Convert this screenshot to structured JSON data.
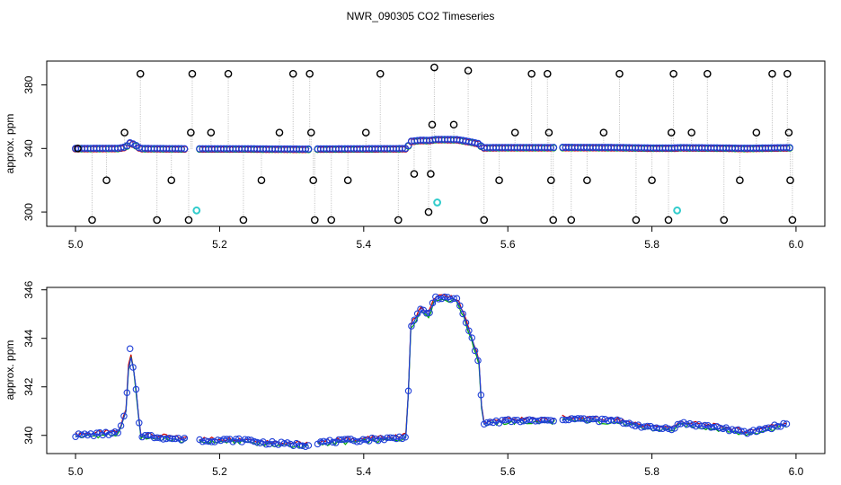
{
  "title": "NWR_090305  CO2 Timeseries",
  "chart_data": [
    {
      "type": "scatter",
      "ylabel": "approx. ppm",
      "xlim": [
        4.96,
        6.04
      ],
      "ylim": [
        291,
        395
      ],
      "xticks": [
        5.0,
        5.2,
        5.4,
        5.6,
        5.8,
        6.0
      ],
      "xticklabels": [
        "5.0",
        "5.2",
        "5.4",
        "5.6",
        "5.8",
        "6.0"
      ],
      "yticks": [
        300,
        340,
        380
      ],
      "yticklabels": [
        "300",
        "340",
        "380"
      ],
      "grid": false,
      "colors": {
        "outlier": "#000000",
        "blue": "#1f3fd8",
        "cyan": "#33cccc",
        "gray": "#bbbbbb"
      },
      "baseline": [
        [
          5.0,
          340.0
        ],
        [
          5.06,
          340.1
        ],
        [
          5.07,
          341.0
        ],
        [
          5.075,
          343.6
        ],
        [
          5.082,
          342.5
        ],
        [
          5.09,
          340.0
        ],
        [
          5.16,
          339.8
        ],
        [
          5.17,
          339.8
        ],
        [
          5.24,
          339.8
        ],
        [
          5.26,
          339.7
        ],
        [
          5.32,
          339.6
        ],
        [
          5.33,
          339.7
        ],
        [
          5.45,
          339.9
        ],
        [
          5.46,
          340.0
        ],
        [
          5.465,
          344.5
        ],
        [
          5.48,
          345.2
        ],
        [
          5.49,
          345.0
        ],
        [
          5.5,
          345.7
        ],
        [
          5.53,
          345.6
        ],
        [
          5.55,
          344.0
        ],
        [
          5.56,
          343.0
        ],
        [
          5.565,
          340.5
        ],
        [
          5.6,
          340.6
        ],
        [
          5.66,
          340.6
        ],
        [
          5.67,
          340.7
        ],
        [
          5.75,
          340.6
        ],
        [
          5.8,
          340.3
        ],
        [
          5.82,
          340.3
        ],
        [
          5.83,
          340.3
        ],
        [
          5.84,
          340.5
        ],
        [
          5.9,
          340.3
        ],
        [
          5.93,
          340.1
        ],
        [
          5.99,
          340.5
        ]
      ],
      "outliers": [
        [
          5.003,
          340
        ],
        [
          5.023,
          295
        ],
        [
          5.043,
          320
        ],
        [
          5.068,
          350
        ],
        [
          5.09,
          387
        ],
        [
          5.113,
          295
        ],
        [
          5.133,
          320
        ],
        [
          5.157,
          295
        ],
        [
          5.16,
          350
        ],
        [
          5.162,
          387
        ],
        [
          5.188,
          350
        ],
        [
          5.212,
          387
        ],
        [
          5.233,
          295
        ],
        [
          5.258,
          320
        ],
        [
          5.283,
          350
        ],
        [
          5.302,
          387
        ],
        [
          5.325,
          387
        ],
        [
          5.327,
          350
        ],
        [
          5.33,
          320
        ],
        [
          5.332,
          295
        ],
        [
          5.355,
          295
        ],
        [
          5.378,
          320
        ],
        [
          5.403,
          350
        ],
        [
          5.423,
          387
        ],
        [
          5.448,
          295
        ],
        [
          5.47,
          324
        ],
        [
          5.49,
          300
        ],
        [
          5.493,
          324
        ],
        [
          5.495,
          355
        ],
        [
          5.498,
          391
        ],
        [
          5.525,
          355
        ],
        [
          5.545,
          389
        ],
        [
          5.567,
          295
        ],
        [
          5.588,
          320
        ],
        [
          5.61,
          350
        ],
        [
          5.633,
          387
        ],
        [
          5.655,
          387
        ],
        [
          5.657,
          350
        ],
        [
          5.66,
          320
        ],
        [
          5.663,
          295
        ],
        [
          5.688,
          295
        ],
        [
          5.71,
          320
        ],
        [
          5.733,
          350
        ],
        [
          5.755,
          387
        ],
        [
          5.778,
          295
        ],
        [
          5.8,
          320
        ],
        [
          5.823,
          295
        ],
        [
          5.827,
          350
        ],
        [
          5.83,
          387
        ],
        [
          5.855,
          350
        ],
        [
          5.877,
          387
        ],
        [
          5.9,
          295
        ],
        [
          5.922,
          320
        ],
        [
          5.945,
          350
        ],
        [
          5.967,
          387
        ],
        [
          5.988,
          387
        ],
        [
          5.99,
          350
        ],
        [
          5.992,
          320
        ],
        [
          5.995,
          295
        ]
      ],
      "highlight": [
        [
          5.168,
          301
        ],
        [
          5.502,
          306
        ],
        [
          5.835,
          301
        ]
      ],
      "gaps": [
        [
          5.155,
          5.17
        ],
        [
          5.325,
          5.335
        ],
        [
          5.665,
          5.672
        ]
      ]
    },
    {
      "type": "line",
      "ylabel": "approx. ppm",
      "xlim": [
        4.96,
        6.04
      ],
      "ylim": [
        339.25,
        346.1
      ],
      "xticks": [
        5.0,
        5.2,
        5.4,
        5.6,
        5.8,
        6.0
      ],
      "xticklabels": [
        "5.0",
        "5.2",
        "5.4",
        "5.6",
        "5.8",
        "6.0"
      ],
      "yticks": [
        340,
        342,
        344,
        346
      ],
      "yticklabels": [
        "340",
        "342",
        "344",
        "346"
      ],
      "grid": false,
      "series_colors": [
        "#cc0000",
        "#00aa00",
        "#1f3fd8"
      ],
      "profile": [
        [
          5.0,
          340.0
        ],
        [
          5.06,
          340.1
        ],
        [
          5.07,
          341.0
        ],
        [
          5.075,
          343.6
        ],
        [
          5.082,
          342.5
        ],
        [
          5.09,
          340.0
        ],
        [
          5.16,
          339.8
        ],
        [
          5.17,
          339.8
        ],
        [
          5.24,
          339.8
        ],
        [
          5.26,
          339.7
        ],
        [
          5.32,
          339.6
        ],
        [
          5.33,
          339.7
        ],
        [
          5.45,
          339.9
        ],
        [
          5.46,
          340.0
        ],
        [
          5.465,
          344.5
        ],
        [
          5.48,
          345.2
        ],
        [
          5.49,
          345.0
        ],
        [
          5.5,
          345.7
        ],
        [
          5.53,
          345.6
        ],
        [
          5.55,
          344.0
        ],
        [
          5.56,
          343.0
        ],
        [
          5.565,
          340.5
        ],
        [
          5.6,
          340.6
        ],
        [
          5.66,
          340.6
        ],
        [
          5.67,
          340.7
        ],
        [
          5.75,
          340.6
        ],
        [
          5.8,
          340.3
        ],
        [
          5.82,
          340.3
        ],
        [
          5.83,
          340.3
        ],
        [
          5.84,
          340.5
        ],
        [
          5.9,
          340.3
        ],
        [
          5.93,
          340.1
        ],
        [
          5.99,
          340.5
        ]
      ],
      "gaps": [
        [
          5.155,
          5.17
        ],
        [
          5.325,
          5.335
        ],
        [
          5.665,
          5.672
        ]
      ]
    }
  ]
}
